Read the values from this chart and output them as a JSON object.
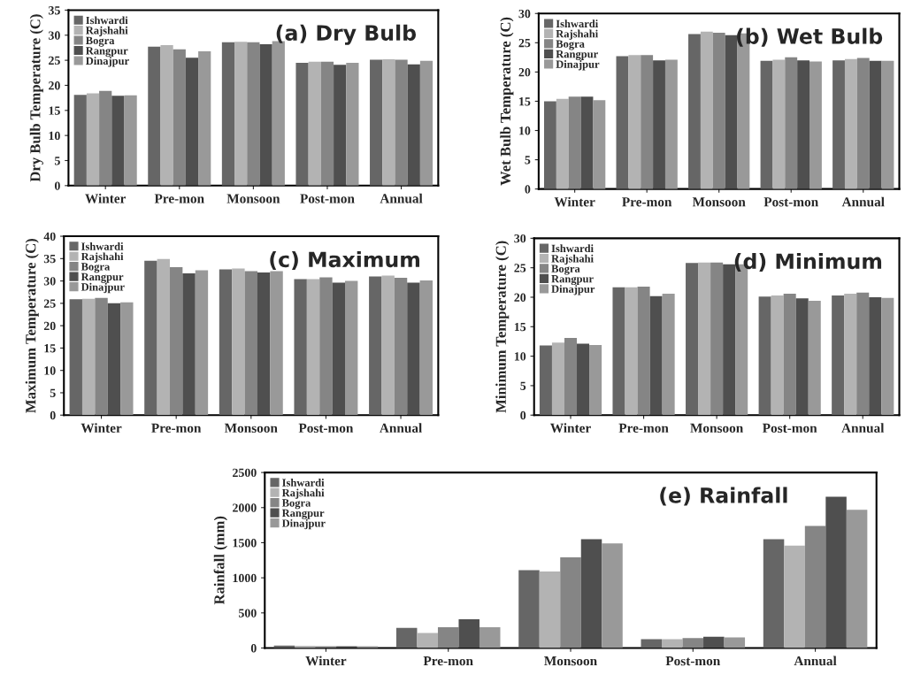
{
  "chart_data": [
    {
      "type": "bar",
      "title": "(a) Dry Bulb",
      "ylabel": "Dry Bulb Temperature (C)",
      "categories": [
        "Winter",
        "Pre-mon",
        "Monsoon",
        "Post-mon",
        "Annual"
      ],
      "ylim": [
        0,
        35
      ],
      "yticks": [
        0,
        5,
        10,
        15,
        20,
        25,
        30,
        35
      ],
      "grid": false,
      "legend": "top left",
      "series": [
        {
          "name": "Ishwardi",
          "color": "#666666",
          "values": [
            18.1,
            27.7,
            28.6,
            24.5,
            25.1
          ]
        },
        {
          "name": "Rajshahi",
          "color": "#b3b3b3",
          "values": [
            18.4,
            28.0,
            28.7,
            24.7,
            25.2
          ]
        },
        {
          "name": "Bogra",
          "color": "#858585",
          "values": [
            18.9,
            27.2,
            28.6,
            24.7,
            25.1
          ]
        },
        {
          "name": "Rangpur",
          "color": "#4f4f4f",
          "values": [
            17.9,
            25.5,
            28.2,
            24.1,
            24.2
          ]
        },
        {
          "name": "Dinajpur",
          "color": "#999999",
          "values": [
            18.0,
            26.8,
            28.8,
            24.5,
            24.9
          ]
        }
      ]
    },
    {
      "type": "bar",
      "title": "(b) Wet Bulb",
      "ylabel": "Wet Bulb Temperature (C)",
      "categories": [
        "Winter",
        "Pre-mon",
        "Monsoon",
        "Post-mon",
        "Annual"
      ],
      "ylim": [
        0,
        30
      ],
      "yticks": [
        0,
        5,
        10,
        15,
        20,
        25,
        30
      ],
      "grid": false,
      "legend": "top left",
      "series": [
        {
          "name": "Ishwardi",
          "color": "#666666",
          "values": [
            15.0,
            22.7,
            26.5,
            21.9,
            22.0
          ]
        },
        {
          "name": "Rajshahi",
          "color": "#b3b3b3",
          "values": [
            15.4,
            22.9,
            26.9,
            22.1,
            22.2
          ]
        },
        {
          "name": "Bogra",
          "color": "#858585",
          "values": [
            15.8,
            22.9,
            26.7,
            22.5,
            22.4
          ]
        },
        {
          "name": "Rangpur",
          "color": "#4f4f4f",
          "values": [
            15.8,
            22.0,
            26.3,
            22.0,
            21.9
          ]
        },
        {
          "name": "Dinajpur",
          "color": "#999999",
          "values": [
            15.2,
            22.1,
            26.6,
            21.8,
            21.9
          ]
        }
      ]
    },
    {
      "type": "bar",
      "title": "(c) Maximum",
      "ylabel": "Maximum Temperature (C)",
      "categories": [
        "Winter",
        "Pre-mon",
        "Monsoon",
        "Post-mon",
        "Annual"
      ],
      "ylim": [
        0,
        40
      ],
      "yticks": [
        0,
        5,
        10,
        15,
        20,
        25,
        30,
        35,
        40
      ],
      "grid": false,
      "legend": "top left",
      "series": [
        {
          "name": "Ishwardi",
          "color": "#666666",
          "values": [
            25.9,
            34.5,
            32.6,
            30.4,
            31.0
          ]
        },
        {
          "name": "Rajshahi",
          "color": "#b3b3b3",
          "values": [
            26.0,
            34.9,
            32.8,
            30.4,
            31.2
          ]
        },
        {
          "name": "Bogra",
          "color": "#858585",
          "values": [
            26.2,
            33.1,
            32.2,
            30.8,
            30.7
          ]
        },
        {
          "name": "Rangpur",
          "color": "#4f4f4f",
          "values": [
            25.0,
            31.7,
            31.9,
            29.6,
            29.6
          ]
        },
        {
          "name": "Dinajpur",
          "color": "#999999",
          "values": [
            25.2,
            32.4,
            32.2,
            30.0,
            30.1
          ]
        }
      ]
    },
    {
      "type": "bar",
      "title": "(d) Minimum",
      "ylabel": "Minimum Temperature (C)",
      "categories": [
        "Winter",
        "Pre-mon",
        "Monsoon",
        "Post-mon",
        "Annual"
      ],
      "ylim": [
        0,
        30
      ],
      "yticks": [
        0,
        5,
        10,
        15,
        20,
        25,
        30
      ],
      "grid": false,
      "legend": "top left",
      "series": [
        {
          "name": "Ishwardi",
          "color": "#666666",
          "values": [
            11.8,
            21.7,
            25.8,
            20.1,
            20.3
          ]
        },
        {
          "name": "Rajshahi",
          "color": "#b3b3b3",
          "values": [
            12.3,
            21.7,
            25.9,
            20.3,
            20.6
          ]
        },
        {
          "name": "Bogra",
          "color": "#858585",
          "values": [
            13.1,
            21.8,
            25.9,
            20.6,
            20.8
          ]
        },
        {
          "name": "Rangpur",
          "color": "#4f4f4f",
          "values": [
            12.1,
            20.2,
            25.6,
            19.8,
            20.0
          ]
        },
        {
          "name": "Dinajpur",
          "color": "#999999",
          "values": [
            11.9,
            20.6,
            25.6,
            19.4,
            19.9
          ]
        }
      ]
    },
    {
      "type": "bar",
      "title": "(e) Rainfall",
      "ylabel": "Rainfall (mm)",
      "categories": [
        "Winter",
        "Pre-mon",
        "Monsoon",
        "Post-mon",
        "Annual"
      ],
      "ylim": [
        0,
        2500
      ],
      "yticks": [
        0,
        500,
        1000,
        1500,
        2000,
        2500
      ],
      "grid": false,
      "legend": "top left",
      "series": [
        {
          "name": "Ishwardi",
          "color": "#666666",
          "values": [
            35,
            285,
            1110,
            125,
            1550
          ]
        },
        {
          "name": "Rajshahi",
          "color": "#b3b3b3",
          "values": [
            30,
            215,
            1090,
            125,
            1460
          ]
        },
        {
          "name": "Bogra",
          "color": "#858585",
          "values": [
            25,
            295,
            1290,
            140,
            1740
          ]
        },
        {
          "name": "Rangpur",
          "color": "#4f4f4f",
          "values": [
            25,
            410,
            1550,
            160,
            2155
          ]
        },
        {
          "name": "Dinajpur",
          "color": "#999999",
          "values": [
            25,
            295,
            1490,
            150,
            1970
          ]
        }
      ]
    }
  ]
}
